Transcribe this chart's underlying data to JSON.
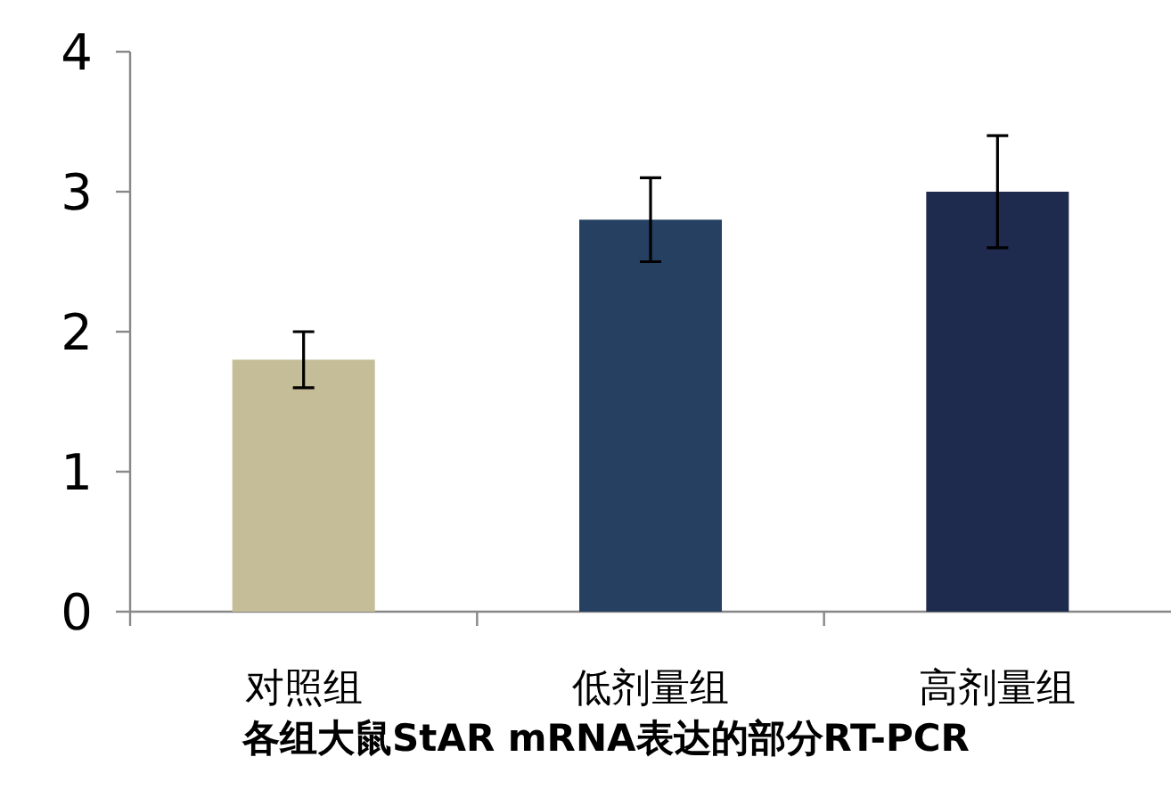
{
  "chart_data": {
    "type": "bar",
    "title": "各组大鼠StAR mRNA表达的部分RT-PCR",
    "categories": [
      "对照组",
      "低剂量组",
      "高剂量组"
    ],
    "values": [
      1.8,
      2.8,
      3.0
    ],
    "errors": [
      0.2,
      0.3,
      0.4
    ],
    "colors": [
      "#c4bd97",
      "#254061",
      "#1f2a4f"
    ],
    "ylim": [
      0,
      4
    ],
    "yticks": [
      0,
      1,
      2,
      3,
      4
    ]
  }
}
